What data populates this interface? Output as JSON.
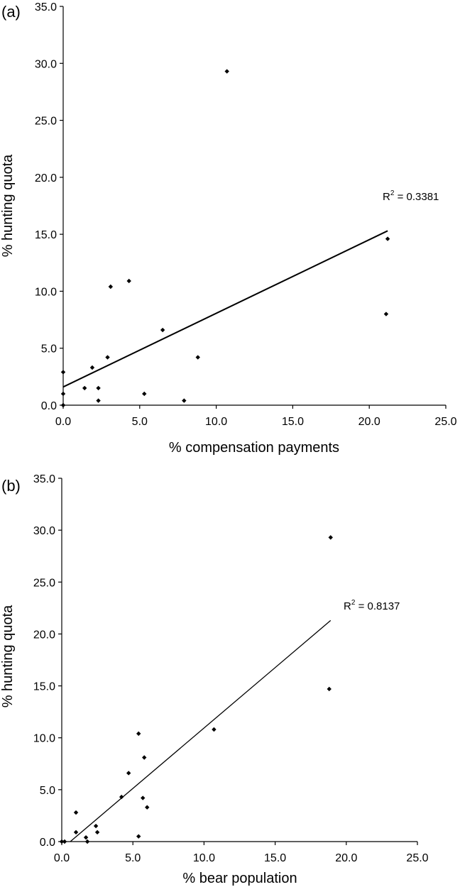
{
  "chart_data": [
    {
      "type": "scatter",
      "panel_label": "(a)",
      "xlabel": "% compensation payments",
      "ylabel": "% hunting quota",
      "xlim": [
        0,
        25
      ],
      "ylim": [
        0,
        35
      ],
      "xticks": [
        "0.0",
        "5.0",
        "10.0",
        "15.0",
        "20.0",
        "25.0"
      ],
      "yticks": [
        "0.0",
        "5.0",
        "10.0",
        "15.0",
        "20.0",
        "25.0",
        "30.0",
        "35.0"
      ],
      "grid": false,
      "points": [
        {
          "x": 0.0,
          "y": 0.0
        },
        {
          "x": 0.0,
          "y": 1.0
        },
        {
          "x": 0.0,
          "y": 2.9
        },
        {
          "x": 1.4,
          "y": 1.5
        },
        {
          "x": 1.9,
          "y": 3.3
        },
        {
          "x": 2.3,
          "y": 0.4
        },
        {
          "x": 2.3,
          "y": 1.5
        },
        {
          "x": 2.9,
          "y": 4.2
        },
        {
          "x": 3.1,
          "y": 10.4
        },
        {
          "x": 4.3,
          "y": 10.9
        },
        {
          "x": 5.3,
          "y": 1.0
        },
        {
          "x": 6.5,
          "y": 6.6
        },
        {
          "x": 7.9,
          "y": 0.4
        },
        {
          "x": 8.8,
          "y": 4.2
        },
        {
          "x": 10.7,
          "y": 29.3
        },
        {
          "x": 21.1,
          "y": 8.0
        },
        {
          "x": 21.2,
          "y": 14.6
        }
      ],
      "trendline": {
        "x1": 0.0,
        "y1": 1.6,
        "x2": 21.2,
        "y2": 15.3
      },
      "annotation": {
        "base": "R",
        "sup": "2",
        "text": " = 0.3381"
      }
    },
    {
      "type": "scatter",
      "panel_label": "(b)",
      "xlabel": "% bear population",
      "ylabel": "% hunting quota",
      "xlim": [
        0,
        25
      ],
      "ylim": [
        0,
        35
      ],
      "xticks": [
        "0.0",
        "5.0",
        "10.0",
        "15.0",
        "20.0",
        "25.0"
      ],
      "yticks": [
        "0.0",
        "5.0",
        "10.0",
        "15.0",
        "20.0",
        "25.0",
        "30.0",
        "35.0"
      ],
      "grid": false,
      "points": [
        {
          "x": 0.0,
          "y": 0.0
        },
        {
          "x": 0.2,
          "y": 0.0
        },
        {
          "x": 1.0,
          "y": 0.9
        },
        {
          "x": 1.0,
          "y": 2.8
        },
        {
          "x": 1.7,
          "y": 0.4
        },
        {
          "x": 1.8,
          "y": 0.0
        },
        {
          "x": 2.4,
          "y": 1.5
        },
        {
          "x": 2.5,
          "y": 0.9
        },
        {
          "x": 4.2,
          "y": 4.3
        },
        {
          "x": 4.7,
          "y": 6.6
        },
        {
          "x": 5.4,
          "y": 0.5
        },
        {
          "x": 5.4,
          "y": 10.4
        },
        {
          "x": 5.7,
          "y": 4.2
        },
        {
          "x": 5.8,
          "y": 8.1
        },
        {
          "x": 6.0,
          "y": 3.3
        },
        {
          "x": 10.7,
          "y": 10.8
        },
        {
          "x": 18.8,
          "y": 14.7
        },
        {
          "x": 18.9,
          "y": 29.3
        }
      ],
      "trendline": {
        "x1": 0.6,
        "y1": 0.0,
        "x2": 18.9,
        "y2": 21.3
      },
      "annotation": {
        "base": "R",
        "sup": "2",
        "text": " = 0.8137"
      }
    }
  ]
}
